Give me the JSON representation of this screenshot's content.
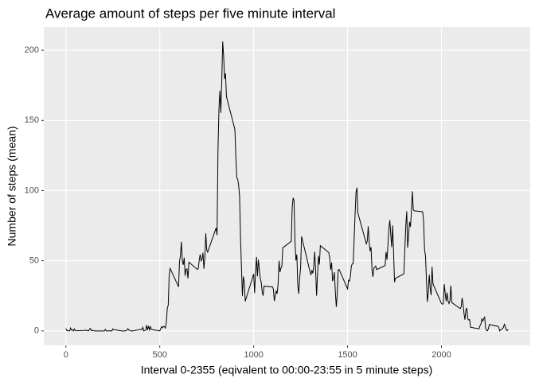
{
  "chart_data": {
    "type": "line",
    "title": "Average amount of steps per five minute interval",
    "x_label": "Interval 0-2355 (eqivalent to 00:00-23:55 in 5 minute steps)",
    "y_label": "Number of steps (mean)",
    "x": [
      0,
      5,
      10,
      15,
      20,
      25,
      30,
      35,
      40,
      45,
      50,
      55,
      100,
      105,
      110,
      115,
      120,
      125,
      130,
      135,
      140,
      145,
      150,
      155,
      200,
      205,
      210,
      215,
      220,
      225,
      230,
      235,
      240,
      245,
      250,
      255,
      300,
      305,
      310,
      315,
      320,
      325,
      330,
      335,
      340,
      345,
      350,
      355,
      400,
      405,
      410,
      415,
      420,
      425,
      430,
      435,
      440,
      445,
      450,
      455,
      500,
      505,
      510,
      515,
      520,
      525,
      530,
      535,
      540,
      545,
      550,
      555,
      600,
      605,
      610,
      615,
      620,
      625,
      630,
      635,
      640,
      645,
      650,
      655,
      700,
      705,
      710,
      715,
      720,
      725,
      730,
      735,
      740,
      745,
      750,
      755,
      800,
      805,
      810,
      815,
      820,
      825,
      830,
      835,
      840,
      845,
      850,
      855,
      900,
      905,
      910,
      915,
      920,
      925,
      930,
      935,
      940,
      945,
      950,
      955,
      1000,
      1005,
      1010,
      1015,
      1020,
      1025,
      1030,
      1035,
      1040,
      1045,
      1050,
      1055,
      1100,
      1105,
      1110,
      1115,
      1120,
      1125,
      1130,
      1135,
      1140,
      1145,
      1150,
      1155,
      1200,
      1205,
      1210,
      1215,
      1220,
      1225,
      1230,
      1235,
      1240,
      1245,
      1250,
      1255,
      1300,
      1305,
      1310,
      1315,
      1320,
      1325,
      1330,
      1335,
      1340,
      1345,
      1350,
      1355,
      1400,
      1405,
      1410,
      1415,
      1420,
      1425,
      1430,
      1435,
      1440,
      1445,
      1450,
      1455,
      1500,
      1505,
      1510,
      1515,
      1520,
      1525,
      1530,
      1535,
      1540,
      1545,
      1550,
      1555,
      1600,
      1605,
      1610,
      1615,
      1620,
      1625,
      1630,
      1635,
      1640,
      1645,
      1650,
      1655,
      1700,
      1705,
      1710,
      1715,
      1720,
      1725,
      1730,
      1735,
      1740,
      1745,
      1750,
      1755,
      1800,
      1805,
      1810,
      1815,
      1820,
      1825,
      1830,
      1835,
      1840,
      1845,
      1850,
      1855,
      1900,
      1905,
      1910,
      1915,
      1920,
      1925,
      1930,
      1935,
      1940,
      1945,
      1950,
      1955,
      2000,
      2005,
      2010,
      2015,
      2020,
      2025,
      2030,
      2035,
      2040,
      2045,
      2050,
      2055,
      2100,
      2105,
      2110,
      2115,
      2120,
      2125,
      2130,
      2135,
      2140,
      2145,
      2150,
      2155,
      2200,
      2205,
      2210,
      2215,
      2220,
      2225,
      2230,
      2235,
      2240,
      2245,
      2250,
      2255,
      2300,
      2305,
      2310,
      2315,
      2320,
      2325,
      2330,
      2335,
      2340,
      2345,
      2350,
      2355
    ],
    "series": [
      {
        "color": "#000000",
        "values": [
          1.7,
          0.3,
          0.1,
          0.2,
          0.1,
          2.1,
          0.5,
          0.9,
          0,
          1.5,
          0.3,
          0.1,
          0.3,
          0.7,
          0.2,
          0.3,
          0,
          1.1,
          1.8,
          0.2,
          0.2,
          0.4,
          0.3,
          0,
          0,
          0,
          1.1,
          0,
          0,
          0.1,
          0,
          0.2,
          0,
          0,
          1.5,
          0.9,
          0,
          0,
          0,
          0,
          0.2,
          0.6,
          1.6,
          0.6,
          0.5,
          0.1,
          0,
          0,
          1.2,
          0.9,
          2.6,
          0,
          0.3,
          0.4,
          4.1,
          0.7,
          3.5,
          0.8,
          3.1,
          1.1,
          0,
          1.6,
          3.0,
          2.2,
          3.3,
          3.0,
          2.1,
          6.1,
          16.0,
          18.3,
          39.5,
          44.5,
          31.5,
          49.3,
          53.8,
          63.5,
          50.0,
          47.1,
          52.2,
          39.3,
          44.0,
          44.2,
          37.4,
          49.0,
          43.8,
          44.4,
          50.5,
          54.5,
          49.9,
          51.0,
          55.7,
          44.3,
          52.3,
          69.5,
          57.8,
          56.2,
          73.4,
          68.2,
          129.4,
          157.5,
          171.2,
          155.4,
          177.3,
          206.2,
          195.9,
          179.6,
          183.4,
          167.0,
          143.5,
          124.0,
          109.1,
          108.1,
          103.7,
          96.0,
          66.2,
          45.2,
          24.8,
          38.8,
          35.0,
          21.1,
          40.6,
          27.0,
          42.4,
          52.7,
          38.9,
          50.8,
          44.3,
          37.4,
          34.7,
          28.3,
          25.1,
          31.9,
          31.4,
          29.7,
          21.3,
          25.5,
          28.4,
          26.5,
          33.4,
          50.0,
          42.0,
          44.6,
          46.0,
          59.2,
          63.9,
          87.7,
          94.8,
          92.8,
          63.4,
          50.2,
          54.5,
          32.4,
          26.5,
          37.7,
          45.1,
          67.3,
          42.3,
          39.9,
          43.3,
          41.0,
          46.2,
          56.4,
          42.8,
          25.1,
          40.0,
          53.5,
          47.3,
          60.8,
          55.8,
          52.0,
          43.6,
          48.7,
          35.5,
          37.5,
          41.8,
          27.5,
          17.1,
          26.1,
          43.6,
          43.8,
          30.0,
          36.1,
          35.5,
          38.8,
          46.0,
          47.8,
          48.1,
          65.3,
          82.9,
          98.7,
          102.1,
          84.0,
          62.1,
          64.1,
          74.5,
          63.2,
          56.9,
          59.8,
          43.9,
          38.6,
          44.7,
          45.5,
          46.2,
          43.7,
          46.6,
          56.3,
          50.7,
          61.2,
          72.7,
          78.9,
          68.9,
          59.7,
          75.1,
          56.5,
          34.8,
          37.5,
          40.7,
          58.0,
          74.7,
          85.3,
          59.3,
          67.8,
          77.7,
          74.2,
          85.3,
          99.5,
          86.6,
          85.6,
          84.9,
          77.8,
          58.0,
          53.4,
          36.3,
          20.7,
          27.4,
          40.0,
          30.2,
          25.5,
          45.7,
          33.5,
          19.6,
          19.0,
          19.3,
          33.3,
          26.8,
          21.2,
          27.3,
          21.3,
          19.5,
          21.3,
          32.3,
          20.2,
          15.9,
          17.2,
          23.5,
          19.2,
          12.5,
          8.0,
          14.7,
          16.3,
          8.7,
          7.8,
          8.1,
          2.6,
          1.5,
          3.7,
          4.8,
          8.5,
          7.1,
          8.7,
          9.8,
          2.2,
          0.3,
          0.1,
          1.6,
          4.6,
          3.3,
          2.8,
          0,
          0.8,
          1.0,
          1.6,
          2.6,
          4.7,
          3.3,
          0.6,
          0.2,
          1.1
        ]
      }
    ],
    "xlim": [
      -117.75,
      2472.75
    ],
    "xticks": [
      0,
      500,
      1000,
      1500,
      2000
    ],
    "ylim": [
      -10.3,
      216.5
    ],
    "yticks": [
      0,
      50,
      100,
      150,
      200
    ],
    "grid": true,
    "panel_color": "#ebebeb"
  }
}
